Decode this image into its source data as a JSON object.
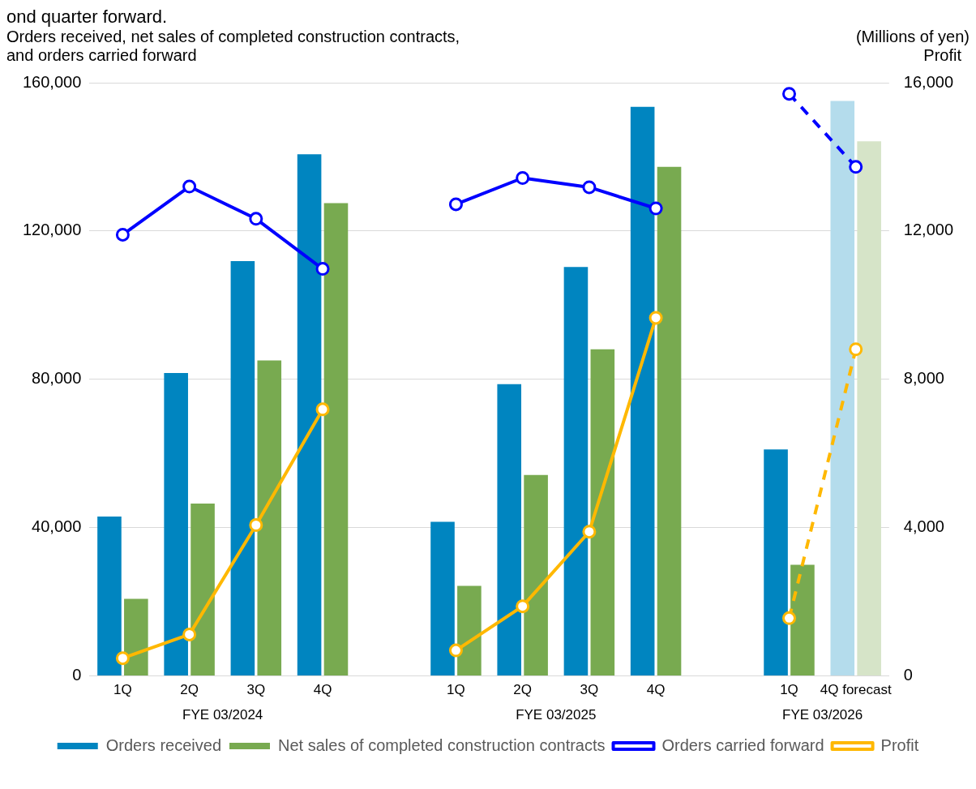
{
  "chart_data": {
    "type": "bar",
    "subtitle": "ond quarter forward.",
    "ylabel": "Orders received, net sales of completed construction contracts,\nand orders carried forward",
    "y2label": "Profit",
    "annotations": [
      "(Millions of yen)",
      "FYE 03/2024",
      "FYE 03/2025",
      "FYE 03/2026"
    ],
    "categories": [
      "1Q",
      "2Q",
      "3Q",
      "4Q",
      null,
      "1Q",
      "2Q",
      "3Q",
      "4Q",
      null,
      "1Q",
      "4Q forecast"
    ],
    "ylim": [
      0,
      160000
    ],
    "yticks": [
      {
        "value": 0,
        "label": "0"
      },
      {
        "value": 40000,
        "label": "40,000"
      },
      {
        "value": 80000,
        "label": "80,000"
      },
      {
        "value": 120000,
        "label": "120,000"
      },
      {
        "value": 160000,
        "label": "160,000"
      }
    ],
    "y2lim": [
      0,
      16000
    ],
    "y2ticks": [
      {
        "value": 0,
        "label": "0"
      },
      {
        "value": 4000,
        "label": "4,000"
      },
      {
        "value": 8000,
        "label": "8,000"
      },
      {
        "value": 12000,
        "label": "12,000"
      },
      {
        "value": 16000,
        "label": "16,000"
      }
    ],
    "grid": "y",
    "legend": "bottom",
    "series": [
      {
        "name": "Orders received",
        "color": "#0085c0",
        "colors": [
          "#0085c0",
          "#0085c0",
          "#0085c0",
          "#0085c0",
          "#0085c0",
          "#0085c0",
          "#0085c0",
          "#0085c0",
          "#0085c0",
          "#0085c0",
          "#0085c0",
          "#b4dcec"
        ],
        "values": [
          43000,
          81700,
          111900,
          140700,
          null,
          41600,
          78700,
          110300,
          153500,
          null,
          61100,
          155100
        ]
      },
      {
        "name": "Net sales of completed construction contracts",
        "color": "#78aa50",
        "colors": [
          "#78aa50",
          "#78aa50",
          "#78aa50",
          "#78aa50",
          "#78aa50",
          "#78aa50",
          "#78aa50",
          "#78aa50",
          "#78aa50",
          "#78aa50",
          "#78aa50",
          "#d6e4c8"
        ],
        "values": [
          20800,
          46500,
          85100,
          127500,
          null,
          24300,
          54200,
          88100,
          137300,
          null,
          30000,
          144200
        ]
      },
      {
        "type": "line",
        "name": "Orders carried forward",
        "color": "#0000ff",
        "marker": "circle",
        "line_style": "solid",
        "values": [
          119000,
          132000,
          123300,
          109800,
          null,
          127200,
          134300,
          131800,
          126100,
          null,
          null,
          null
        ]
      },
      {
        "type": "line",
        "color": "#0000ff",
        "marker": "circle",
        "line_style": "dashed",
        "values": [
          null,
          null,
          null,
          null,
          null,
          null,
          null,
          null,
          null,
          null,
          157000,
          137300
        ]
      },
      {
        "type": "line",
        "name": "Profit",
        "axis": "y2",
        "color": "#ffb800",
        "marker": "circle",
        "line_style": "solid",
        "values": [
          480,
          1120,
          4070,
          7190,
          null,
          690,
          1880,
          3890,
          9660,
          null,
          null,
          null
        ]
      },
      {
        "type": "line",
        "axis": "y2",
        "color": "#ffb800",
        "marker": "circle",
        "line_style": "dashed",
        "values": [
          null,
          null,
          null,
          null,
          null,
          null,
          null,
          null,
          null,
          null,
          1560,
          8810
        ]
      }
    ]
  }
}
